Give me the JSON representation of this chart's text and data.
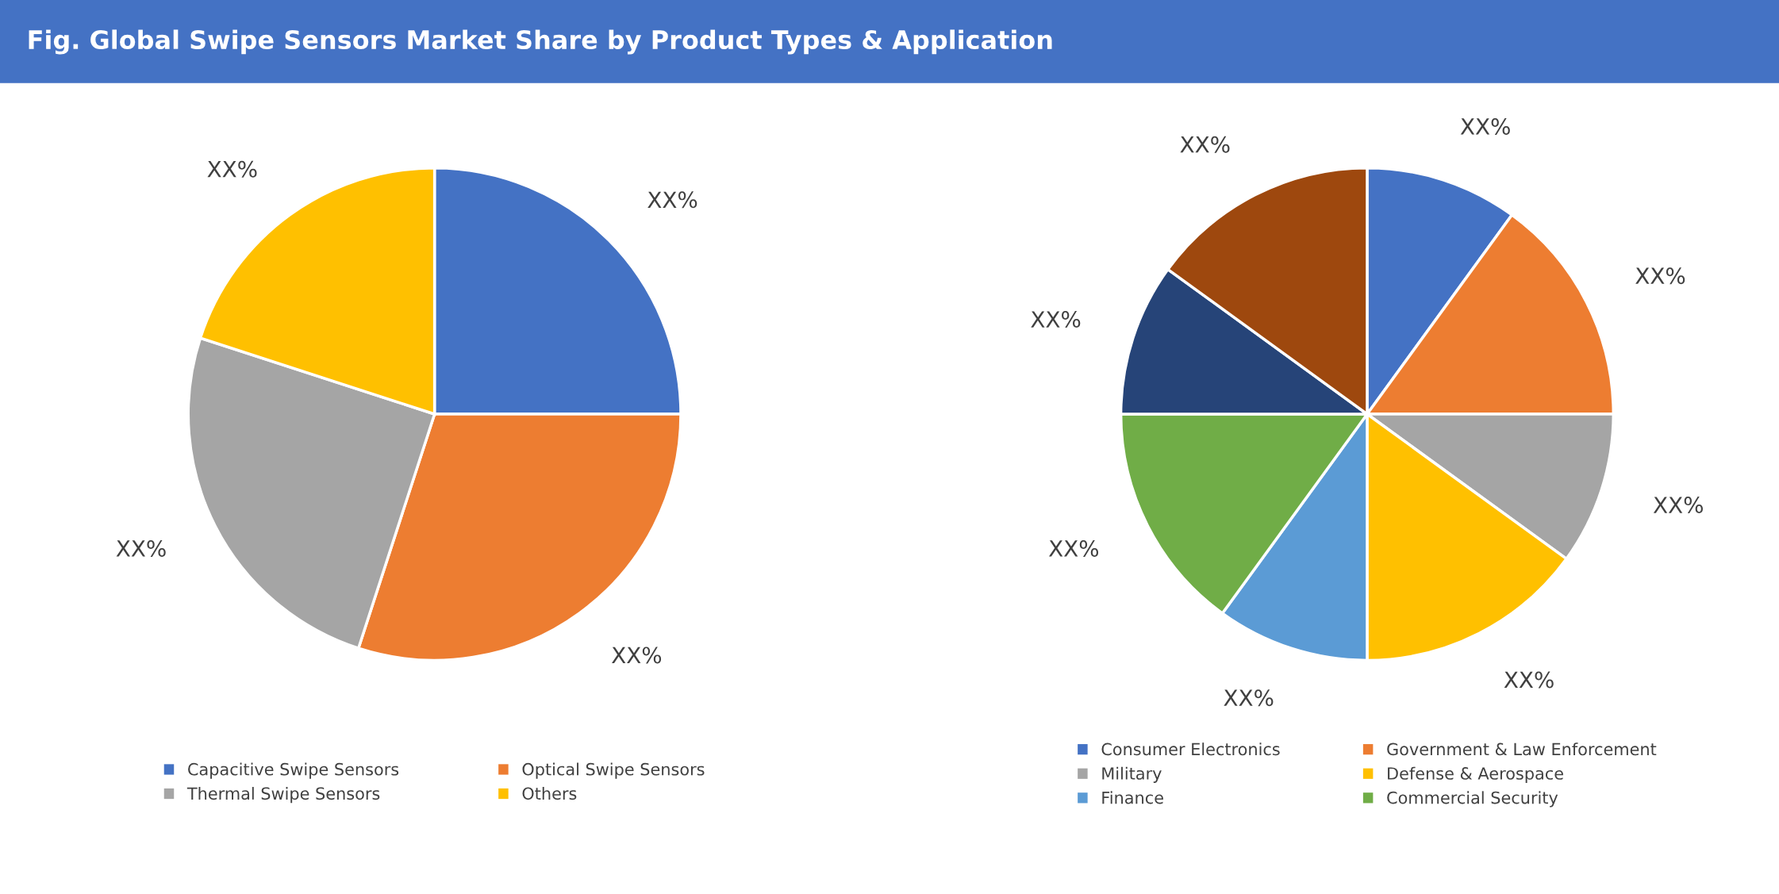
{
  "chart_data": [
    {
      "type": "pie",
      "title": "Fig. Global Swipe Sensors Market Share by Product Types & Application",
      "categories": [
        "Capacitive Swipe Sensors",
        "Optical Swipe Sensors",
        "Thermal Swipe Sensors",
        "Others"
      ],
      "values": [
        25,
        30,
        25,
        20
      ],
      "colors": [
        "#4472c4",
        "#ed7d31",
        "#a5a5a5",
        "#ffc000"
      ],
      "value_labels": [
        "XX%",
        "XX%",
        "XX%",
        "XX%"
      ],
      "legend": "bottom"
    },
    {
      "type": "pie",
      "categories": [
        "Consumer Electronics",
        "Government & Law Enforcement",
        "Military",
        "Defense & Aerospace",
        "Finance",
        "Commercial Security",
        null,
        null
      ],
      "values": [
        10,
        15,
        10,
        15,
        10,
        15,
        10,
        15
      ],
      "colors": [
        "#4472c4",
        "#ed7d31",
        "#a5a5a5",
        "#ffc000",
        "#5b9bd5",
        "#70ad47",
        "#264478",
        "#9e480e"
      ],
      "value_labels": [
        "XX%",
        "XX%",
        "XX%",
        "XX%",
        "XX%",
        "XX%",
        "XX%",
        "XX%"
      ],
      "legend": "bottom"
    }
  ]
}
